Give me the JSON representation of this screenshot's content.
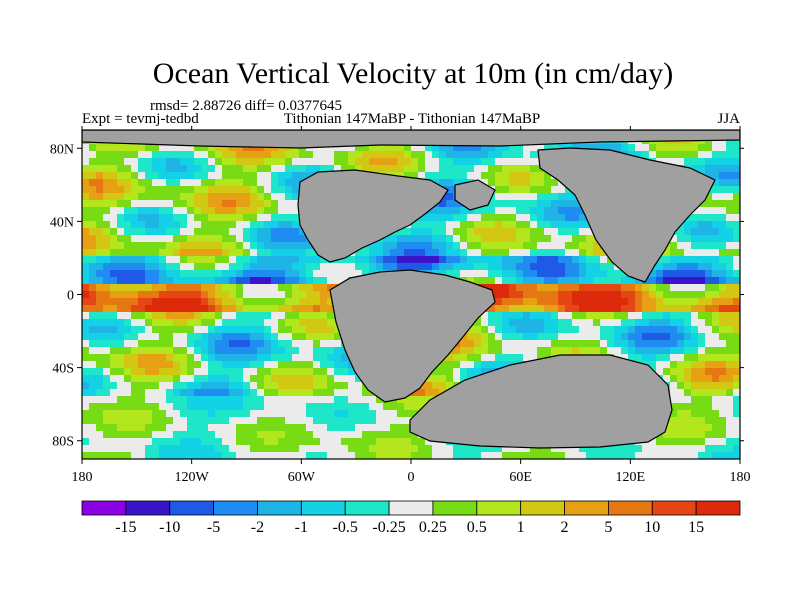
{
  "chart_data": {
    "type": "heatmap",
    "title": "Ocean Vertical Velocity at 10m (in cm/day)",
    "stats_line": "rmsd= 2.88726 diff= 0.0377645",
    "left_label": "Expt = tevmj-tedbd",
    "center_label": "Tithonian 147MaBP - Tithonian 147MaBP",
    "right_label": "JJA",
    "x_ticks": [
      "180",
      "120W",
      "60W",
      "0",
      "60E",
      "120E",
      "180"
    ],
    "x_tick_values": [
      -180,
      -120,
      -60,
      0,
      60,
      120,
      180
    ],
    "y_ticks": [
      "80N",
      "40N",
      "0",
      "40S",
      "80S"
    ],
    "y_tick_values": [
      80,
      40,
      0,
      -40,
      -80
    ],
    "xlim": [
      -180,
      180
    ],
    "ylim": [
      -90,
      90
    ],
    "colorbar_labels": [
      "-15",
      "-10",
      "-5",
      "-2",
      "-1",
      "-0.5",
      "-0.25",
      "0.25",
      "0.5",
      "1",
      "2",
      "5",
      "10",
      "15"
    ],
    "colorbar_colors": [
      "#8c00e6",
      "#3a14c8",
      "#1e5ae6",
      "#1e8cf0",
      "#1eb4e6",
      "#14d2e6",
      "#1ee6c8",
      "#ebebeb",
      "#78dc14",
      "#b4e61e",
      "#d2c814",
      "#e6a014",
      "#e67814",
      "#e64614",
      "#dc2a0a"
    ],
    "colors": {
      "land": "#a0a0a0",
      "coast": "#000000"
    }
  }
}
